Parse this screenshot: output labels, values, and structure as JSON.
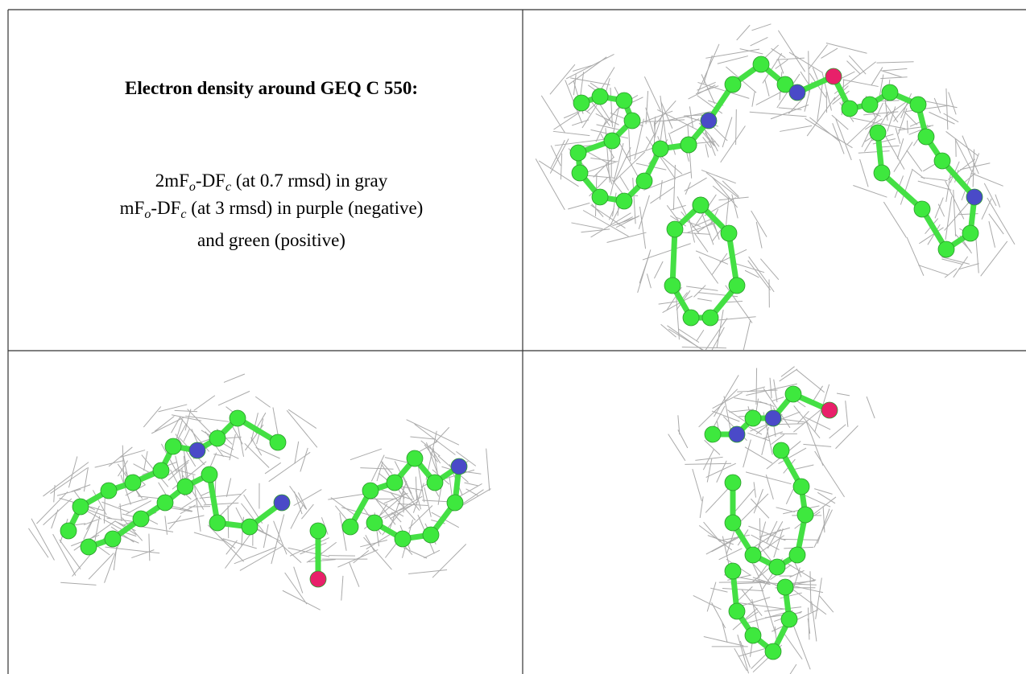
{
  "panel": {
    "title": "Electron density around GEQ C 550:",
    "caption_lines": [
      [
        "2mF",
        "o",
        "-DF",
        "c",
        " (at 0.7 rmsd) in gray"
      ],
      [
        "mF",
        "o",
        "-DF",
        "c",
        " (at 3 rmsd) in purple (negative)"
      ],
      [
        "and green (positive)"
      ]
    ]
  }
}
